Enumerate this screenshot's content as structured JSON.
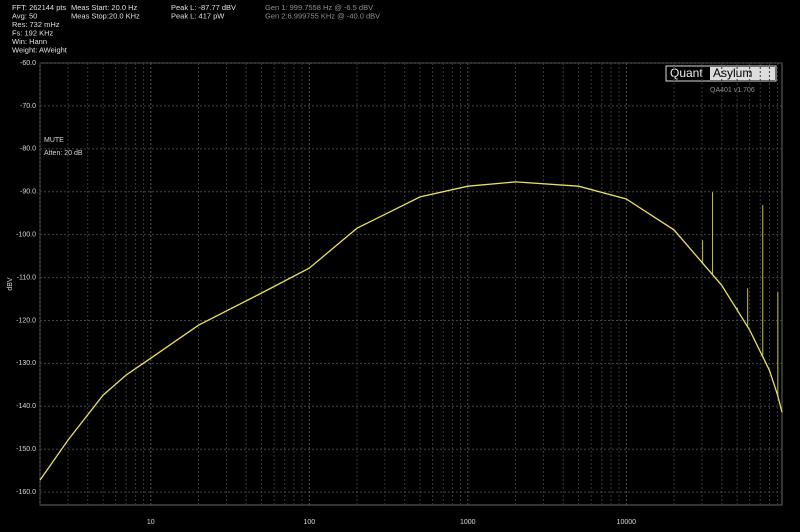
{
  "header": {
    "col1": [
      "FFT: 262144 pts",
      "Avg: 50",
      "Res: 732 mHz",
      "Fs: 192 KHz",
      "Win: Hann",
      "Weight: AWeight"
    ],
    "col2": [
      "Meas Start: 20.0 Hz",
      "Meas Stop:20.0 KHz"
    ],
    "col3": [
      "Peak L: -87.77 dBV",
      "Peak L: 417 pW"
    ],
    "col4": [
      "Gen 1: 999.7558 Hz @ -6.5  dBV",
      "Gen 2:6.999755 KHz @ -40.0  dBV"
    ]
  },
  "logo": {
    "left": "Quant",
    "right": "Asylum",
    "version": "QA401 v1.706"
  },
  "notes": [
    "MUTE",
    "Atten: 20 dB"
  ],
  "chart_data": {
    "type": "line",
    "y_label": "dBV",
    "log_x": true,
    "grid": true,
    "xlim": [
      2,
      96000
    ],
    "ylim": [
      -163,
      -60
    ],
    "xticks": [
      10,
      100,
      1000,
      10000
    ],
    "x_minor_ticks": [
      2,
      3,
      4,
      5,
      6,
      7,
      8,
      9,
      20,
      30,
      40,
      50,
      60,
      70,
      80,
      90,
      200,
      300,
      400,
      500,
      600,
      700,
      800,
      900,
      2000,
      3000,
      4000,
      5000,
      6000,
      7000,
      8000,
      9000,
      20000,
      30000,
      40000,
      50000,
      60000,
      70000,
      80000,
      90000
    ],
    "yticks": [
      {
        "value": -60,
        "label": "-60.0"
      },
      {
        "value": -70,
        "label": "-70.0"
      },
      {
        "value": -80,
        "label": "-80.0"
      },
      {
        "value": -90,
        "label": "-90.0"
      },
      {
        "value": -100,
        "label": "-100.0"
      },
      {
        "value": -110,
        "label": "-110.0"
      },
      {
        "value": -120,
        "label": "-120.0"
      },
      {
        "value": -130,
        "label": "-130.0"
      },
      {
        "value": -140,
        "label": "-140.0"
      },
      {
        "value": -150,
        "label": "-150.0"
      },
      {
        "value": -160,
        "label": "-160.0"
      }
    ],
    "series": [
      {
        "color": "#e8e060",
        "x": [
          2,
          3,
          5,
          7,
          10,
          20,
          50,
          100,
          200,
          500,
          1000,
          2000,
          5000,
          10000,
          20000,
          40000,
          60000,
          80000,
          90000,
          96000
        ],
        "values": [
          -157.2,
          -147.9,
          -137.4,
          -132.7,
          -128.8,
          -121.1,
          -113.6,
          -107.8,
          -98.5,
          -91.2,
          -88.7,
          -87.7,
          -88.7,
          -91.7,
          -98.9,
          -111.8,
          -122.2,
          -131.6,
          -137.4,
          -141.4
        ]
      }
    ],
    "spikes": {
      "color": "#c8c040",
      "x": [
        30300,
        35000,
        50200,
        58300,
        72600,
        90400
      ],
      "values": [
        -101.3,
        -90.1,
        -117,
        -112.5,
        -93.1,
        -113.4
      ]
    }
  }
}
